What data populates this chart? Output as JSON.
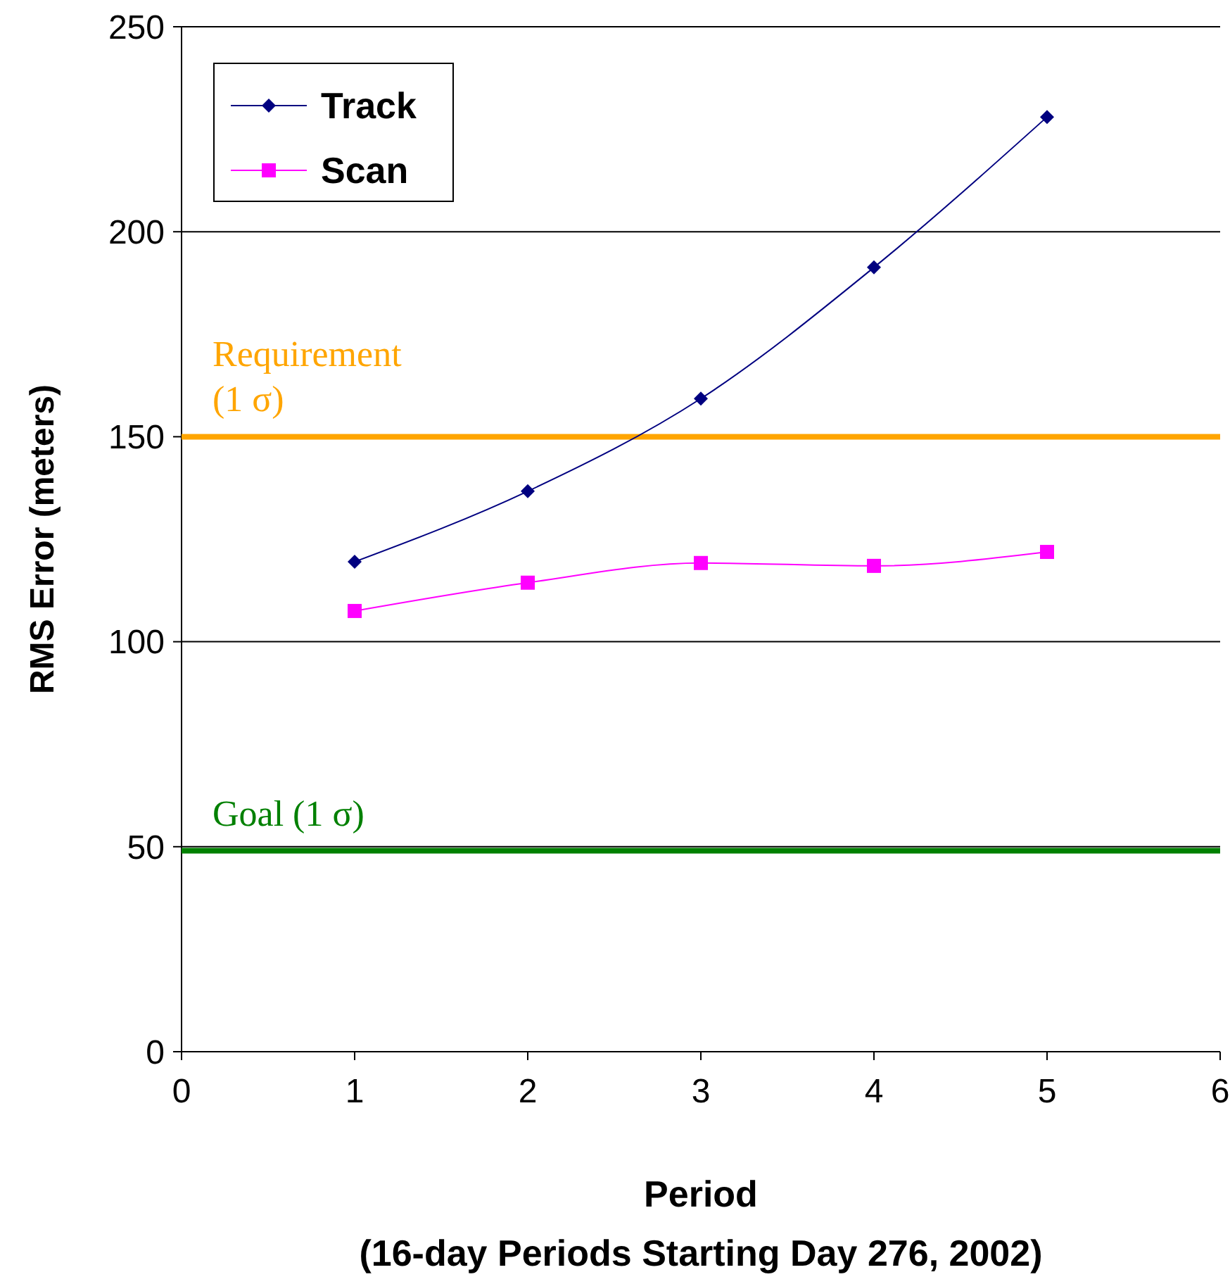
{
  "chart_data": {
    "type": "line",
    "xlabel": "Period",
    "ylabel": "RMS Error (meters)",
    "annotations": [
      "(16-day Periods Starting Day 276, 2002)"
    ],
    "x": [
      1,
      2,
      3,
      4,
      5
    ],
    "series": [
      {
        "name": "Track",
        "color": "#000080",
        "values": [
          119.5,
          136.7,
          159.3,
          191.3,
          228
        ],
        "marker": "diamond"
      },
      {
        "name": "Scan",
        "color": "#ff00ff",
        "values": [
          107.5,
          114.4,
          119.2,
          118.5,
          121.9
        ],
        "marker": "square"
      }
    ],
    "xlim": [
      0,
      6
    ],
    "xticks": [
      0,
      1,
      2,
      3,
      4,
      5,
      6
    ],
    "ylim": [
      0,
      250
    ],
    "yticks": [
      0,
      50,
      100,
      150,
      200,
      250
    ],
    "grid": "y",
    "legend": "top left",
    "line_style": "solid",
    "ref_lines": [
      {
        "axis": "y",
        "value": 150,
        "label": "Requirement\n(1 σ)",
        "color": "#ffa500"
      },
      {
        "axis": "y",
        "value": 49,
        "label": "Goal (1 σ)",
        "color": "#008000"
      }
    ]
  }
}
